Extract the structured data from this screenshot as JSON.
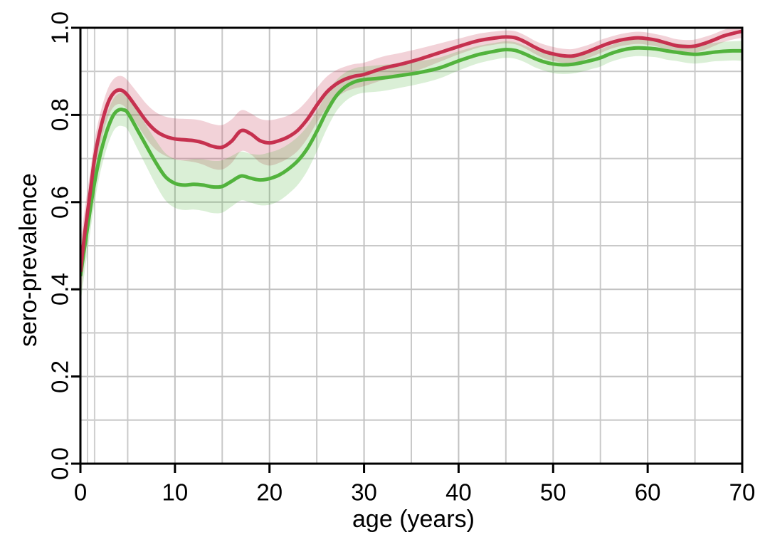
{
  "chart_data": {
    "type": "line",
    "title": "",
    "xlabel": "age (years)",
    "ylabel": "sero-prevalence",
    "xlim": [
      0,
      70
    ],
    "ylim": [
      0.0,
      1.0
    ],
    "x_tick_labels": [
      "0",
      "10",
      "20",
      "30",
      "40",
      "50",
      "60",
      "70"
    ],
    "y_tick_labels": [
      "0.0",
      "0.2",
      "0.4",
      "0.6",
      "0.8",
      "1.0"
    ],
    "x_minor_gridlines": [
      5,
      15,
      25,
      35,
      45,
      55,
      65
    ],
    "y_minor_gridlines": [
      0.1,
      0.3,
      0.5,
      0.7,
      0.9
    ],
    "reference_vlines_x": [
      0.75,
      1.5
    ],
    "grid": true,
    "legend": "none",
    "plot_border": true,
    "colors": {
      "background": "#ffffff",
      "major_grid": "#c2c2c2",
      "minor_grid": "#c9c9c9",
      "reference_line": "#cfcfcf",
      "axis": "#000000",
      "red_line": "#c6314f",
      "red_band": "rgba(199,62,88,0.23)",
      "green_line": "#52b33d",
      "green_band": "rgba(80,180,60,0.21)"
    },
    "x": [
      0,
      0.5,
      1,
      1.5,
      2,
      2.5,
      3,
      3.5,
      4,
      4.5,
      5,
      6,
      7,
      8,
      9,
      10,
      11,
      12,
      13,
      14,
      15,
      16,
      17,
      18,
      19,
      20,
      21,
      22,
      23,
      24,
      25,
      26,
      27,
      28,
      29,
      30,
      32,
      34,
      36,
      38,
      40,
      42,
      44,
      45,
      46,
      47,
      48,
      49,
      50,
      51,
      52,
      53,
      54,
      55,
      56,
      57,
      58,
      59,
      60,
      61,
      62,
      63,
      64,
      65,
      66,
      67,
      68,
      69,
      70
    ],
    "series": [
      {
        "name": "red",
        "line_color": "#c6314f",
        "band_color": "rgba(199,62,88,0.23)",
        "y": [
          0.44,
          0.535,
          0.617,
          0.7,
          0.757,
          0.8,
          0.832,
          0.85,
          0.857,
          0.855,
          0.845,
          0.815,
          0.785,
          0.763,
          0.751,
          0.745,
          0.743,
          0.741,
          0.736,
          0.728,
          0.726,
          0.74,
          0.764,
          0.757,
          0.741,
          0.736,
          0.741,
          0.75,
          0.765,
          0.79,
          0.822,
          0.851,
          0.87,
          0.882,
          0.889,
          0.893,
          0.907,
          0.917,
          0.929,
          0.943,
          0.957,
          0.97,
          0.977,
          0.979,
          0.977,
          0.968,
          0.956,
          0.946,
          0.94,
          0.936,
          0.935,
          0.94,
          0.948,
          0.957,
          0.965,
          0.971,
          0.975,
          0.977,
          0.975,
          0.971,
          0.965,
          0.959,
          0.957,
          0.958,
          0.964,
          0.972,
          0.981,
          0.987,
          0.992
        ],
        "band_halfwidth": [
          0.065,
          0.055,
          0.048,
          0.042,
          0.038,
          0.035,
          0.033,
          0.032,
          0.032,
          0.033,
          0.034,
          0.037,
          0.04,
          0.043,
          0.045,
          0.047,
          0.048,
          0.049,
          0.05,
          0.051,
          0.051,
          0.05,
          0.047,
          0.047,
          0.05,
          0.052,
          0.051,
          0.049,
          0.047,
          0.044,
          0.04,
          0.036,
          0.032,
          0.029,
          0.028,
          0.027,
          0.027,
          0.026,
          0.024,
          0.021,
          0.018,
          0.016,
          0.015,
          0.015,
          0.015,
          0.015,
          0.015,
          0.016,
          0.016,
          0.016,
          0.016,
          0.016,
          0.015,
          0.015,
          0.014,
          0.014,
          0.014,
          0.014,
          0.014,
          0.014,
          0.015,
          0.015,
          0.015,
          0.015,
          0.015,
          0.014,
          0.014,
          0.014,
          0.015
        ]
      },
      {
        "name": "green",
        "line_color": "#52b33d",
        "band_color": "rgba(80,180,60,0.21)",
        "y": [
          0.43,
          0.505,
          0.578,
          0.645,
          0.7,
          0.742,
          0.776,
          0.8,
          0.811,
          0.812,
          0.805,
          0.767,
          0.728,
          0.69,
          0.658,
          0.643,
          0.639,
          0.641,
          0.639,
          0.635,
          0.636,
          0.648,
          0.66,
          0.655,
          0.651,
          0.654,
          0.662,
          0.676,
          0.695,
          0.723,
          0.762,
          0.806,
          0.842,
          0.864,
          0.876,
          0.881,
          0.885,
          0.891,
          0.898,
          0.908,
          0.924,
          0.938,
          0.947,
          0.95,
          0.948,
          0.94,
          0.93,
          0.922,
          0.917,
          0.915,
          0.916,
          0.92,
          0.925,
          0.931,
          0.94,
          0.947,
          0.952,
          0.954,
          0.953,
          0.951,
          0.947,
          0.944,
          0.941,
          0.939,
          0.941,
          0.944,
          0.946,
          0.947,
          0.947
        ],
        "band_halfwidth": [
          0.065,
          0.058,
          0.052,
          0.046,
          0.042,
          0.04,
          0.038,
          0.037,
          0.037,
          0.038,
          0.039,
          0.043,
          0.047,
          0.051,
          0.054,
          0.056,
          0.057,
          0.058,
          0.059,
          0.06,
          0.06,
          0.058,
          0.056,
          0.056,
          0.058,
          0.06,
          0.059,
          0.057,
          0.055,
          0.051,
          0.046,
          0.041,
          0.036,
          0.033,
          0.031,
          0.03,
          0.03,
          0.028,
          0.026,
          0.024,
          0.022,
          0.02,
          0.019,
          0.019,
          0.019,
          0.019,
          0.02,
          0.02,
          0.021,
          0.021,
          0.021,
          0.021,
          0.02,
          0.02,
          0.019,
          0.019,
          0.019,
          0.019,
          0.019,
          0.019,
          0.02,
          0.02,
          0.021,
          0.021,
          0.021,
          0.021,
          0.022,
          0.022,
          0.023
        ]
      }
    ]
  }
}
